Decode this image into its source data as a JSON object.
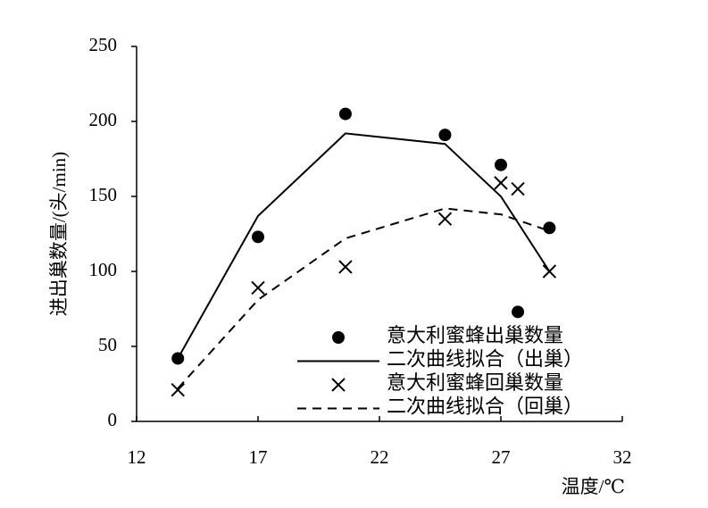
{
  "chart_data": {
    "type": "line",
    "x_label": "温度/℃",
    "y_label": "进出巢数量/(头/min)",
    "xlim": [
      12,
      32
    ],
    "xticks": [
      12,
      17,
      22,
      27,
      32
    ],
    "ylim": [
      0,
      250
    ],
    "yticks": [
      0,
      50,
      100,
      150,
      200,
      250
    ],
    "series": [
      {
        "name": "意大利蜜蜂出巢数量",
        "color": "#000000",
        "mode": "markers",
        "marker": "circle",
        "x": [
          13.7,
          17.0,
          20.6,
          24.7,
          27.0,
          27.7,
          29.0
        ],
        "values": [
          42,
          123,
          205,
          191,
          171,
          73,
          129
        ]
      },
      {
        "name": "二次曲线拟合（出巢）",
        "color": "#000000",
        "mode": "line",
        "dash": false,
        "x": [
          13.7,
          17.0,
          20.6,
          24.7,
          27.0,
          29.0
        ],
        "values": [
          42,
          137,
          192,
          185,
          150,
          100
        ]
      },
      {
        "name": "意大利蜜蜂回巢数量",
        "color": "#000000",
        "mode": "markers",
        "marker": "x",
        "x": [
          13.7,
          17.0,
          20.6,
          24.7,
          27.0,
          27.7,
          29.0
        ],
        "values": [
          21,
          89,
          103,
          135,
          159,
          155,
          100
        ]
      },
      {
        "name": "二次曲线拟合（回巢）",
        "color": "#000000",
        "mode": "line",
        "dash": true,
        "x": [
          13.7,
          17.0,
          20.6,
          24.7,
          27.0,
          29.0
        ],
        "values": [
          22,
          81,
          122,
          142,
          138,
          127
        ]
      }
    ]
  }
}
